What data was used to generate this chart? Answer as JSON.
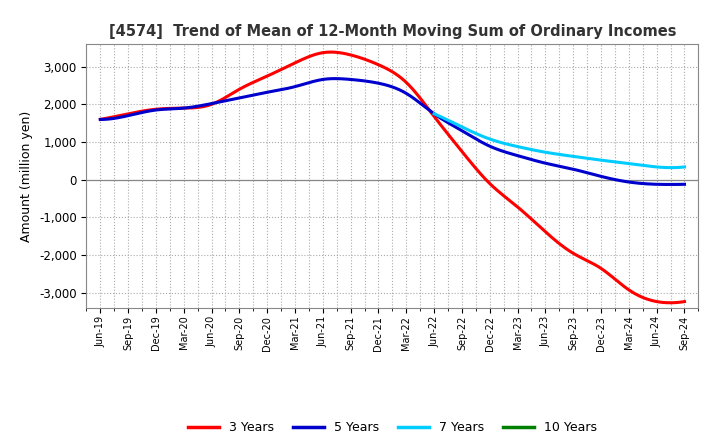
{
  "title": "[4574]  Trend of Mean of 12-Month Moving Sum of Ordinary Incomes",
  "ylabel": "Amount (million yen)",
  "background_color": "#ffffff",
  "grid_color": "#aaaaaa",
  "ylim": [
    -3400,
    3600
  ],
  "yticks": [
    -3000,
    -2000,
    -1000,
    0,
    1000,
    2000,
    3000
  ],
  "x_labels": [
    "Jun-19",
    "Sep-19",
    "Dec-19",
    "Mar-20",
    "Jun-20",
    "Sep-20",
    "Dec-20",
    "Mar-21",
    "Jun-21",
    "Sep-21",
    "Dec-21",
    "Mar-22",
    "Jun-22",
    "Sep-22",
    "Dec-22",
    "Mar-23",
    "Jun-23",
    "Sep-23",
    "Dec-23",
    "Mar-24",
    "Jun-24",
    "Sep-24"
  ],
  "series": {
    "3 Years": {
      "color": "#ff0000",
      "values": [
        1600,
        1750,
        1870,
        1900,
        2000,
        2400,
        2750,
        3100,
        3370,
        3310,
        3050,
        2580,
        1680,
        750,
        -100,
        -720,
        -1380,
        -1950,
        -2350,
        -2920,
        -3230,
        -3230
      ]
    },
    "5 Years": {
      "color": "#0000cc",
      "values": [
        1600,
        1700,
        1850,
        1900,
        2020,
        2170,
        2320,
        2470,
        2660,
        2660,
        2560,
        2290,
        1750,
        1300,
        890,
        640,
        440,
        280,
        90,
        -60,
        -120,
        -120
      ]
    },
    "7 Years": {
      "color": "#00ccff",
      "values": [
        null,
        null,
        null,
        null,
        null,
        null,
        null,
        null,
        null,
        null,
        null,
        null,
        1750,
        1400,
        1080,
        880,
        730,
        620,
        520,
        430,
        340,
        340
      ]
    },
    "10 Years": {
      "color": "#008000",
      "values": [
        null,
        null,
        null,
        null,
        null,
        null,
        null,
        null,
        null,
        null,
        null,
        null,
        null,
        null,
        null,
        null,
        null,
        null,
        null,
        null,
        null,
        null
      ]
    }
  },
  "legend_labels": [
    "3 Years",
    "5 Years",
    "7 Years",
    "10 Years"
  ],
  "legend_colors": [
    "#ff0000",
    "#0000cc",
    "#00ccff",
    "#008000"
  ]
}
